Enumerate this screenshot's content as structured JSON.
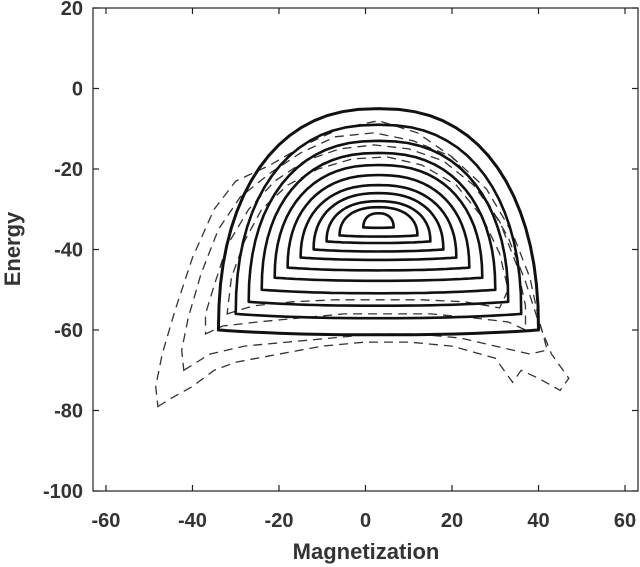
{
  "chart_data": {
    "type": "contour",
    "xlabel": "Magnetization",
    "ylabel": "Energy",
    "xlim": [
      -63,
      63
    ],
    "ylim": [
      -100,
      20
    ],
    "xticks": [
      -60,
      -40,
      -20,
      0,
      20,
      40,
      60
    ],
    "yticks": [
      20,
      0,
      -20,
      -40,
      -60,
      -80,
      -100
    ],
    "grid": false,
    "solid_center": [
      3,
      -33
    ],
    "solid_levels": [
      {
        "half_width": 37,
        "top": -5,
        "bottom": -60
      },
      {
        "half_width": 33,
        "top": -9,
        "bottom": -56
      },
      {
        "half_width": 30,
        "top": -13,
        "bottom": -53
      },
      {
        "half_width": 27,
        "top": -16,
        "bottom": -50
      },
      {
        "half_width": 24,
        "top": -19,
        "bottom": -47
      },
      {
        "half_width": 21,
        "top": -21.5,
        "bottom": -44.5
      },
      {
        "half_width": 18,
        "top": -24,
        "bottom": -42
      },
      {
        "half_width": 15,
        "top": -26,
        "bottom": -40
      },
      {
        "half_width": 12,
        "top": -28,
        "bottom": -38
      },
      {
        "half_width": 9,
        "top": -29.5,
        "bottom": -36.5
      },
      {
        "half_width": 3.5,
        "top": -31,
        "bottom": -34.5
      }
    ],
    "dashed_outer_contours": [
      {
        "points": [
          [
            -48,
            -79
          ],
          [
            -45,
            -77
          ],
          [
            -40,
            -74
          ],
          [
            -35,
            -70
          ],
          [
            -30,
            -68
          ],
          [
            -20,
            -66
          ],
          [
            -10,
            -64
          ],
          [
            0,
            -63
          ],
          [
            10,
            -63
          ],
          [
            20,
            -64
          ],
          [
            30,
            -67
          ],
          [
            34,
            -73
          ],
          [
            36,
            -70
          ],
          [
            40,
            -72
          ],
          [
            45,
            -75
          ],
          [
            47,
            -72
          ],
          [
            43,
            -66
          ],
          [
            40,
            -58
          ],
          [
            37,
            -48
          ],
          [
            33,
            -37
          ],
          [
            27,
            -26
          ],
          [
            20,
            -17
          ],
          [
            12,
            -11
          ],
          [
            3,
            -8
          ],
          [
            -6,
            -10
          ],
          [
            -14,
            -14
          ],
          [
            -22,
            -19
          ],
          [
            -30,
            -23
          ],
          [
            -35,
            -30
          ],
          [
            -40,
            -42
          ],
          [
            -44,
            -55
          ],
          [
            -47,
            -66
          ],
          [
            -48.5,
            -74
          ],
          [
            -48,
            -79
          ]
        ]
      },
      {
        "points": [
          [
            -42,
            -70
          ],
          [
            -36,
            -66
          ],
          [
            -28,
            -64
          ],
          [
            -18,
            -63
          ],
          [
            -8,
            -62
          ],
          [
            2,
            -61
          ],
          [
            12,
            -61
          ],
          [
            22,
            -62
          ],
          [
            30,
            -64
          ],
          [
            38,
            -66
          ],
          [
            42,
            -65
          ],
          [
            40,
            -57
          ],
          [
            38,
            -47
          ],
          [
            34,
            -36
          ],
          [
            28,
            -25
          ],
          [
            20,
            -17
          ],
          [
            11,
            -13
          ],
          [
            2,
            -11
          ],
          [
            -7,
            -12
          ],
          [
            -15,
            -16
          ],
          [
            -22,
            -21
          ],
          [
            -29,
            -27
          ],
          [
            -34,
            -35
          ],
          [
            -38,
            -46
          ],
          [
            -41,
            -57
          ],
          [
            -42.5,
            -65
          ],
          [
            -42,
            -70
          ]
        ]
      },
      {
        "points": [
          [
            -37,
            -61
          ],
          [
            -33,
            -59
          ],
          [
            -25,
            -58
          ],
          [
            -15,
            -57
          ],
          [
            -5,
            -56
          ],
          [
            5,
            -56
          ],
          [
            15,
            -56
          ],
          [
            25,
            -57
          ],
          [
            33,
            -58
          ],
          [
            37,
            -60
          ],
          [
            37,
            -54
          ],
          [
            35,
            -44
          ],
          [
            31,
            -33
          ],
          [
            25,
            -24
          ],
          [
            18,
            -18
          ],
          [
            10,
            -15
          ],
          [
            2,
            -14
          ],
          [
            -6,
            -15
          ],
          [
            -14,
            -18
          ],
          [
            -21,
            -23
          ],
          [
            -27,
            -30
          ],
          [
            -32,
            -39
          ],
          [
            -35,
            -49
          ],
          [
            -37,
            -56
          ],
          [
            -37,
            -61
          ]
        ]
      },
      {
        "points": [
          [
            -32,
            -56
          ],
          [
            -26,
            -54
          ],
          [
            -17,
            -53
          ],
          [
            -7,
            -52.5
          ],
          [
            3,
            -52.5
          ],
          [
            13,
            -52.5
          ],
          [
            23,
            -53
          ],
          [
            31,
            -54.5
          ],
          [
            33,
            -50
          ],
          [
            31,
            -41
          ],
          [
            27,
            -32
          ],
          [
            21,
            -24
          ],
          [
            13,
            -19
          ],
          [
            5,
            -17
          ],
          [
            -3,
            -17.5
          ],
          [
            -11,
            -20
          ],
          [
            -18,
            -24
          ],
          [
            -24,
            -30
          ],
          [
            -28,
            -38
          ],
          [
            -31,
            -47
          ],
          [
            -32,
            -56
          ]
        ]
      }
    ]
  }
}
